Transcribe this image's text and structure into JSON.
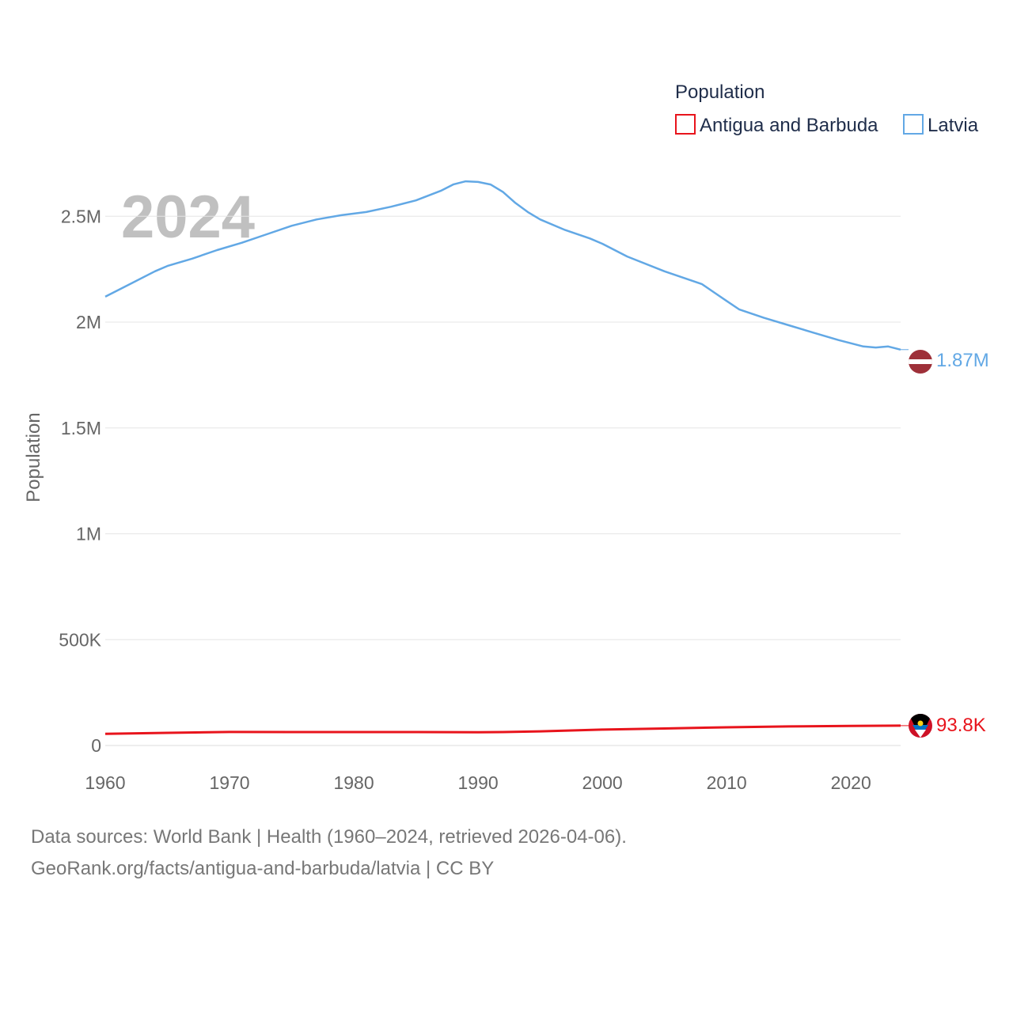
{
  "chart_data": {
    "type": "line",
    "title": "",
    "year_overlay": "2024",
    "xlabel": "",
    "ylabel": "Population",
    "xlim": [
      1960,
      2024
    ],
    "ylim": [
      0,
      2800000
    ],
    "x_ticks": [
      1960,
      1970,
      1980,
      1990,
      2000,
      2010,
      2020
    ],
    "x_tick_labels": [
      "1960",
      "1970",
      "1980",
      "1990",
      "2000",
      "2010",
      "2020"
    ],
    "y_ticks": [
      0,
      500000,
      1000000,
      1500000,
      2000000,
      2500000
    ],
    "y_tick_labels": [
      "0",
      "500K",
      "1M",
      "1.5M",
      "2M",
      "2.5M"
    ],
    "legend_title": "Population",
    "legend_position": "top-right",
    "series": [
      {
        "name": "Antigua and Barbuda",
        "color": "#e8141c",
        "end_label": "93.8K",
        "x": [
          1960,
          1965,
          1970,
          1975,
          1980,
          1985,
          1990,
          1992,
          1995,
          2000,
          2005,
          2010,
          2015,
          2020,
          2024
        ],
        "values": [
          55000,
          60000,
          64000,
          63500,
          63500,
          63500,
          62500,
          63500,
          67000,
          75000,
          80500,
          86000,
          90000,
          92500,
          93800
        ]
      },
      {
        "name": "Latvia",
        "color": "#62a8e5",
        "end_label": "1.87M",
        "x": [
          1960,
          1962,
          1964,
          1965,
          1967,
          1969,
          1971,
          1973,
          1975,
          1977,
          1979,
          1981,
          1983,
          1985,
          1987,
          1988,
          1989,
          1990,
          1991,
          1992,
          1993,
          1994,
          1995,
          1997,
          1999,
          2000,
          2002,
          2005,
          2008,
          2009,
          2010,
          2011,
          2013,
          2015,
          2017,
          2019,
          2021,
          2022,
          2023,
          2024
        ],
        "values": [
          2120000,
          2180000,
          2240000,
          2265000,
          2300000,
          2340000,
          2375000,
          2415000,
          2455000,
          2485000,
          2505000,
          2520000,
          2545000,
          2575000,
          2620000,
          2650000,
          2665000,
          2662000,
          2650000,
          2615000,
          2563000,
          2520000,
          2485000,
          2435000,
          2395000,
          2370000,
          2310000,
          2240000,
          2180000,
          2140000,
          2100000,
          2060000,
          2020000,
          1985000,
          1950000,
          1915000,
          1885000,
          1880000,
          1885000,
          1870000
        ]
      }
    ]
  },
  "footer": {
    "line1": "Data sources: World Bank | Health (1960–2024, retrieved 2026-04-06).",
    "line2": "GeoRank.org/facts/antigua-and-barbuda/latvia | CC BY"
  }
}
